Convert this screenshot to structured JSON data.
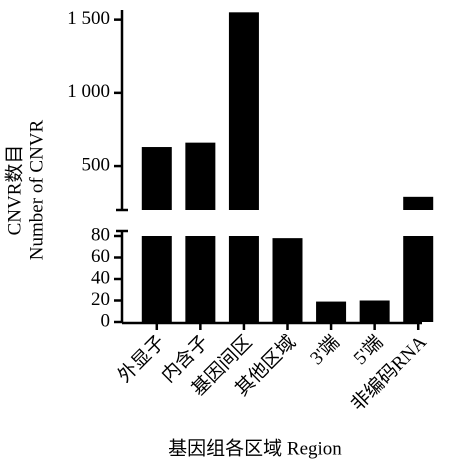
{
  "chart_data": {
    "type": "bar",
    "y_label_lines": [
      "CNVR数目",
      "Number of CNVR"
    ],
    "x_label": "基因组各区域 Region",
    "categories": [
      "外显子",
      "内含子",
      "基因间区",
      "其他区域",
      "3'端",
      "5'端",
      "非编码RNA"
    ],
    "values": [
      630,
      660,
      1550,
      78,
      19,
      20,
      290
    ],
    "color": "#000000",
    "ylim_lower": [
      0,
      80
    ],
    "yticks_lower": [
      0,
      20,
      40,
      60,
      80
    ],
    "ylim_upper": [
      200,
      1600
    ],
    "yticks_upper": [
      500,
      {
        "value": 1000,
        "label": "1 000"
      },
      {
        "value": 1500,
        "label": "1 500"
      }
    ],
    "axis_break": true
  }
}
